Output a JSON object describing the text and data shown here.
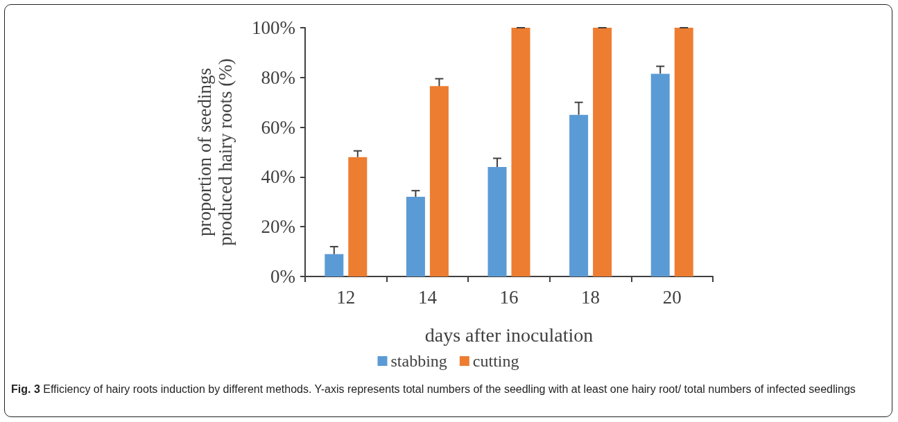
{
  "chart_data": {
    "type": "bar",
    "xlabel": "days after inoculation",
    "ylabel": "proportion of seedings\nproduced hairy roots (%)",
    "categories": [
      "12",
      "14",
      "16",
      "18",
      "20"
    ],
    "series": [
      {
        "name": "stabbing",
        "color": "#5b9bd5",
        "values": [
          9,
          32,
          44,
          65,
          81.5
        ],
        "errors": [
          [
            9,
            12
          ],
          [
            32,
            34.5
          ],
          [
            44,
            47.5
          ],
          [
            65,
            70
          ],
          [
            81.5,
            84.5
          ]
        ]
      },
      {
        "name": "cutting",
        "color": "#ed7d31",
        "values": [
          48,
          76.5,
          100,
          100,
          100
        ],
        "errors": [
          [
            48,
            50.5
          ],
          [
            76.5,
            79.5
          ],
          [
            100,
            100
          ],
          [
            100,
            100
          ],
          [
            100,
            100
          ]
        ]
      }
    ],
    "ylim": [
      0,
      100
    ],
    "yticks": [
      {
        "value": 0,
        "label": "0%"
      },
      {
        "value": 20,
        "label": "20%"
      },
      {
        "value": 40,
        "label": "40%"
      },
      {
        "value": 60,
        "label": "60%"
      },
      {
        "value": 80,
        "label": "80%"
      },
      {
        "value": 100,
        "label": "100%"
      }
    ],
    "grid": false,
    "legend": "bottom",
    "annotations": [
      "Fig. 3 Efficiency of hairy roots induction by different methods. Y-axis represents total numbers of the seedling with at least one hairy root/ total numbers of infected seedlings"
    ]
  }
}
